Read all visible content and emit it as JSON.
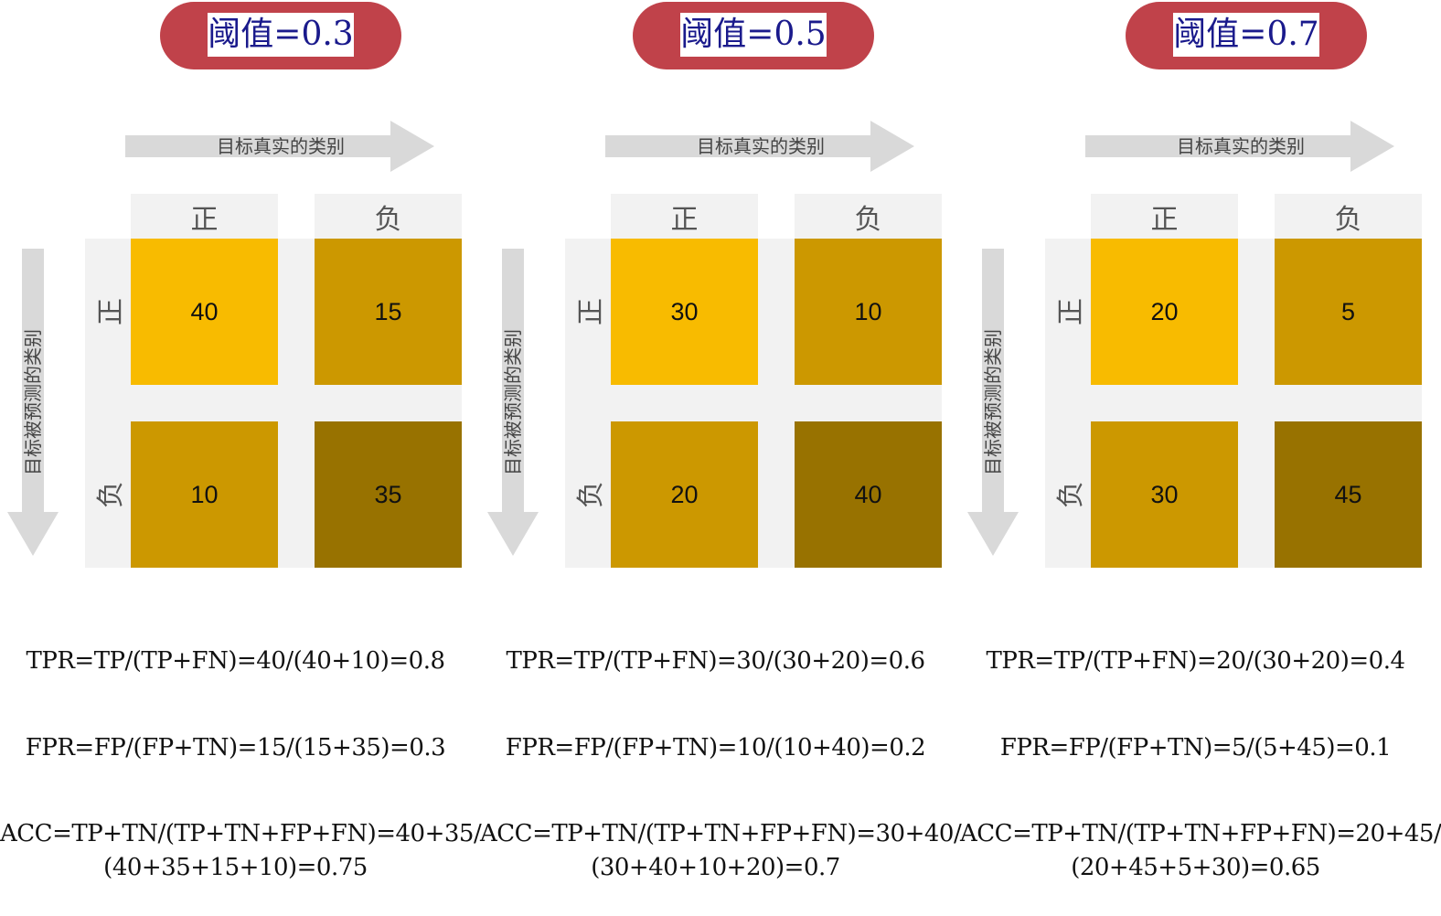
{
  "labels": {
    "x_axis": "目标真实的类别",
    "y_axis": "目标被预测的类别",
    "positive": "正",
    "negative": "负"
  },
  "colors": {
    "pill": "#c0424a",
    "tp_cell": "#f8bb00",
    "fp_fn_cell": "#cc9800",
    "tn_cell": "#987200",
    "header_bg": "#f2f2f2",
    "arrow": "#d9d9d9"
  },
  "panels": [
    {
      "threshold": "阈值=0.3",
      "matrix": {
        "tp": "40",
        "fp": "15",
        "fn": "10",
        "tn": "35"
      },
      "tpr": "TPR=TP/(TP+FN)=40/(40+10)=0.8",
      "fpr": "FPR=FP/(FP+TN)=15/(15+35)=0.3",
      "acc_line1": "ACC=TP+TN/(TP+TN+FP+FN)=40+35/",
      "acc_line2": "(40+35+15+10)=0.75"
    },
    {
      "threshold": "阈值=0.5",
      "matrix": {
        "tp": "30",
        "fp": "10",
        "fn": "20",
        "tn": "40"
      },
      "tpr": "TPR=TP/(TP+FN)=30/(30+20)=0.6",
      "fpr": "FPR=FP/(FP+TN)=10/(10+40)=0.2",
      "acc_line1": "ACC=TP+TN/(TP+TN+FP+FN)=30+40/",
      "acc_line2": "(30+40+10+20)=0.7"
    },
    {
      "threshold": "阈值=0.7",
      "matrix": {
        "tp": "20",
        "fp": "5",
        "fn": "30",
        "tn": "45"
      },
      "tpr": "TPR=TP/(TP+FN)=20/(30+20)=0.4",
      "fpr": "FPR=FP/(FP+TN)=5/(5+45)=0.1",
      "acc_line1": "ACC=TP+TN/(TP+TN+FP+FN)=20+45/",
      "acc_line2": "(20+45+5+30)=0.65"
    }
  ]
}
